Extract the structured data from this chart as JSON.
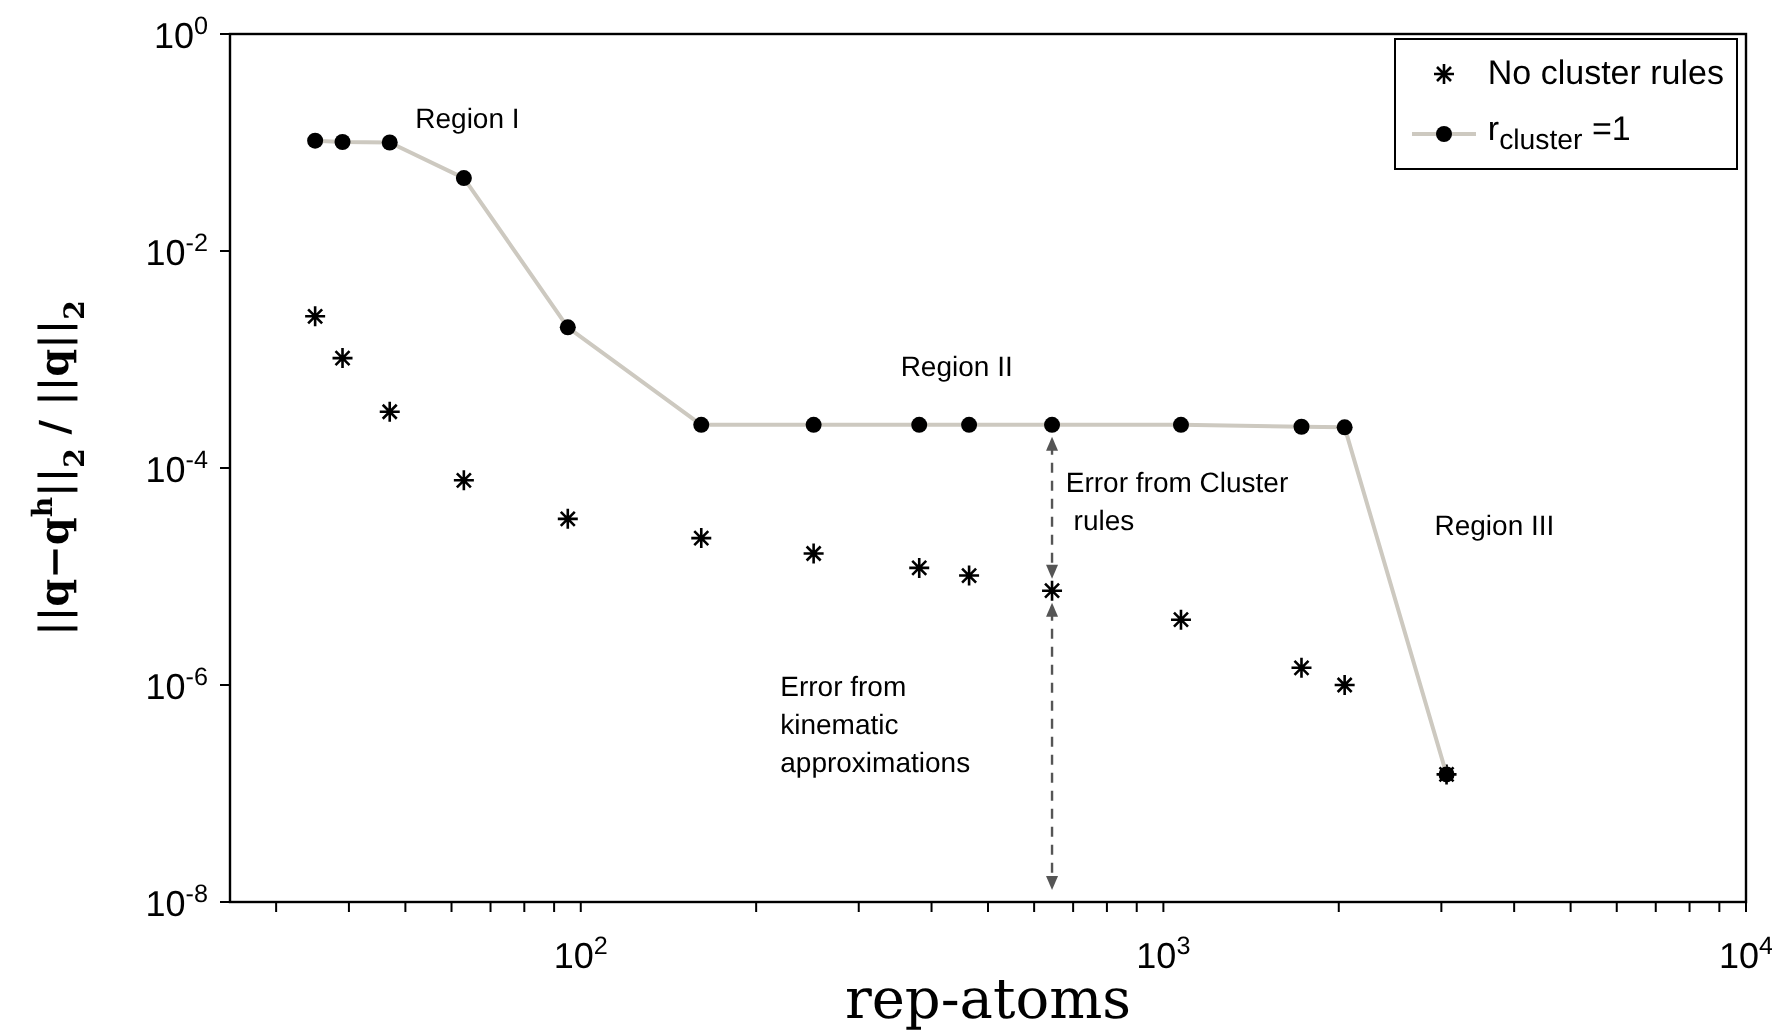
{
  "chart_data": {
    "type": "scatter",
    "xlabel": "rep-atoms",
    "ylabel": "||q−q$^{h}$||$_{2}$ / ||q||$_{2}$",
    "log": "xy",
    "xlim": [
      25,
      10000
    ],
    "xticks": [
      {
        "value": 30,
        "label": null
      },
      {
        "value": 40,
        "label": null
      },
      {
        "value": 50,
        "label": null
      },
      {
        "value": 60,
        "label": null
      },
      {
        "value": 70,
        "label": null
      },
      {
        "value": 80,
        "label": null
      },
      {
        "value": 90,
        "label": null
      },
      {
        "value": 100,
        "label": "10$^{2}$"
      },
      {
        "value": 200,
        "label": null
      },
      {
        "value": 300,
        "label": null
      },
      {
        "value": 400,
        "label": null
      },
      {
        "value": 500,
        "label": null
      },
      {
        "value": 600,
        "label": null
      },
      {
        "value": 700,
        "label": null
      },
      {
        "value": 800,
        "label": null
      },
      {
        "value": 900,
        "label": null
      },
      {
        "value": 1000,
        "label": "10$^{3}$"
      },
      {
        "value": 2000,
        "label": null
      },
      {
        "value": 3000,
        "label": null
      },
      {
        "value": 4000,
        "label": null
      },
      {
        "value": 5000,
        "label": null
      },
      {
        "value": 6000,
        "label": null
      },
      {
        "value": 7000,
        "label": null
      },
      {
        "value": 8000,
        "label": null
      },
      {
        "value": 9000,
        "label": null
      },
      {
        "value": 10000,
        "label": "10$^{4}$"
      }
    ],
    "ylim": [
      1e-08,
      1
    ],
    "yticks": [
      {
        "value": 1e-08,
        "label": "10$^{-8}$"
      },
      {
        "value": 1e-06,
        "label": "10$^{-6}$"
      },
      {
        "value": 0.0001,
        "label": "10$^{-4}$"
      },
      {
        "value": 0.01,
        "label": "10$^{-2}$"
      },
      {
        "value": 1,
        "label": "10$^{0}$"
      }
    ],
    "grid": false,
    "legend": "top right",
    "series": [
      {
        "name": "No cluster rules",
        "type": "scatter",
        "marker": "cross",
        "color": "#000000",
        "x": [
          35,
          39,
          47,
          63,
          95,
          161,
          251,
          381,
          464,
          644,
          1072,
          1726,
          2047,
          3062
        ],
        "values": [
          0.0025,
          0.00103,
          0.00033,
          7.7e-05,
          3.4e-05,
          2.26e-05,
          1.63e-05,
          1.2e-05,
          1.02e-05,
          7.4e-06,
          4e-06,
          1.44e-06,
          1e-06,
          1.5e-07
        ]
      },
      {
        "name": "r$_{cluster}$ =1",
        "type": "line",
        "marker": "circle",
        "color": "#cdc9c0",
        "colors": [
          "#000000",
          "#000000",
          "#000000",
          "#000000",
          "#000000",
          "#000000",
          "#000000",
          "#000000",
          "#000000",
          "#000000",
          "#000000",
          "#000000",
          "#000000",
          "#000000"
        ],
        "x": [
          35,
          39,
          47,
          63,
          95,
          161,
          251,
          381,
          464,
          644,
          1072,
          1726,
          2047,
          3062
        ],
        "values": [
          0.104,
          0.101,
          0.1,
          0.047,
          0.00198,
          0.00025,
          0.00025,
          0.00025,
          0.00025,
          0.00025,
          0.00025,
          0.00024,
          0.000237,
          1.5e-07
        ]
      }
    ],
    "annotations": [
      "Region I",
      "Region II",
      "Region III",
      "Error from Cluster\n rules",
      "Error from\nkinematic\napproximations"
    ]
  }
}
